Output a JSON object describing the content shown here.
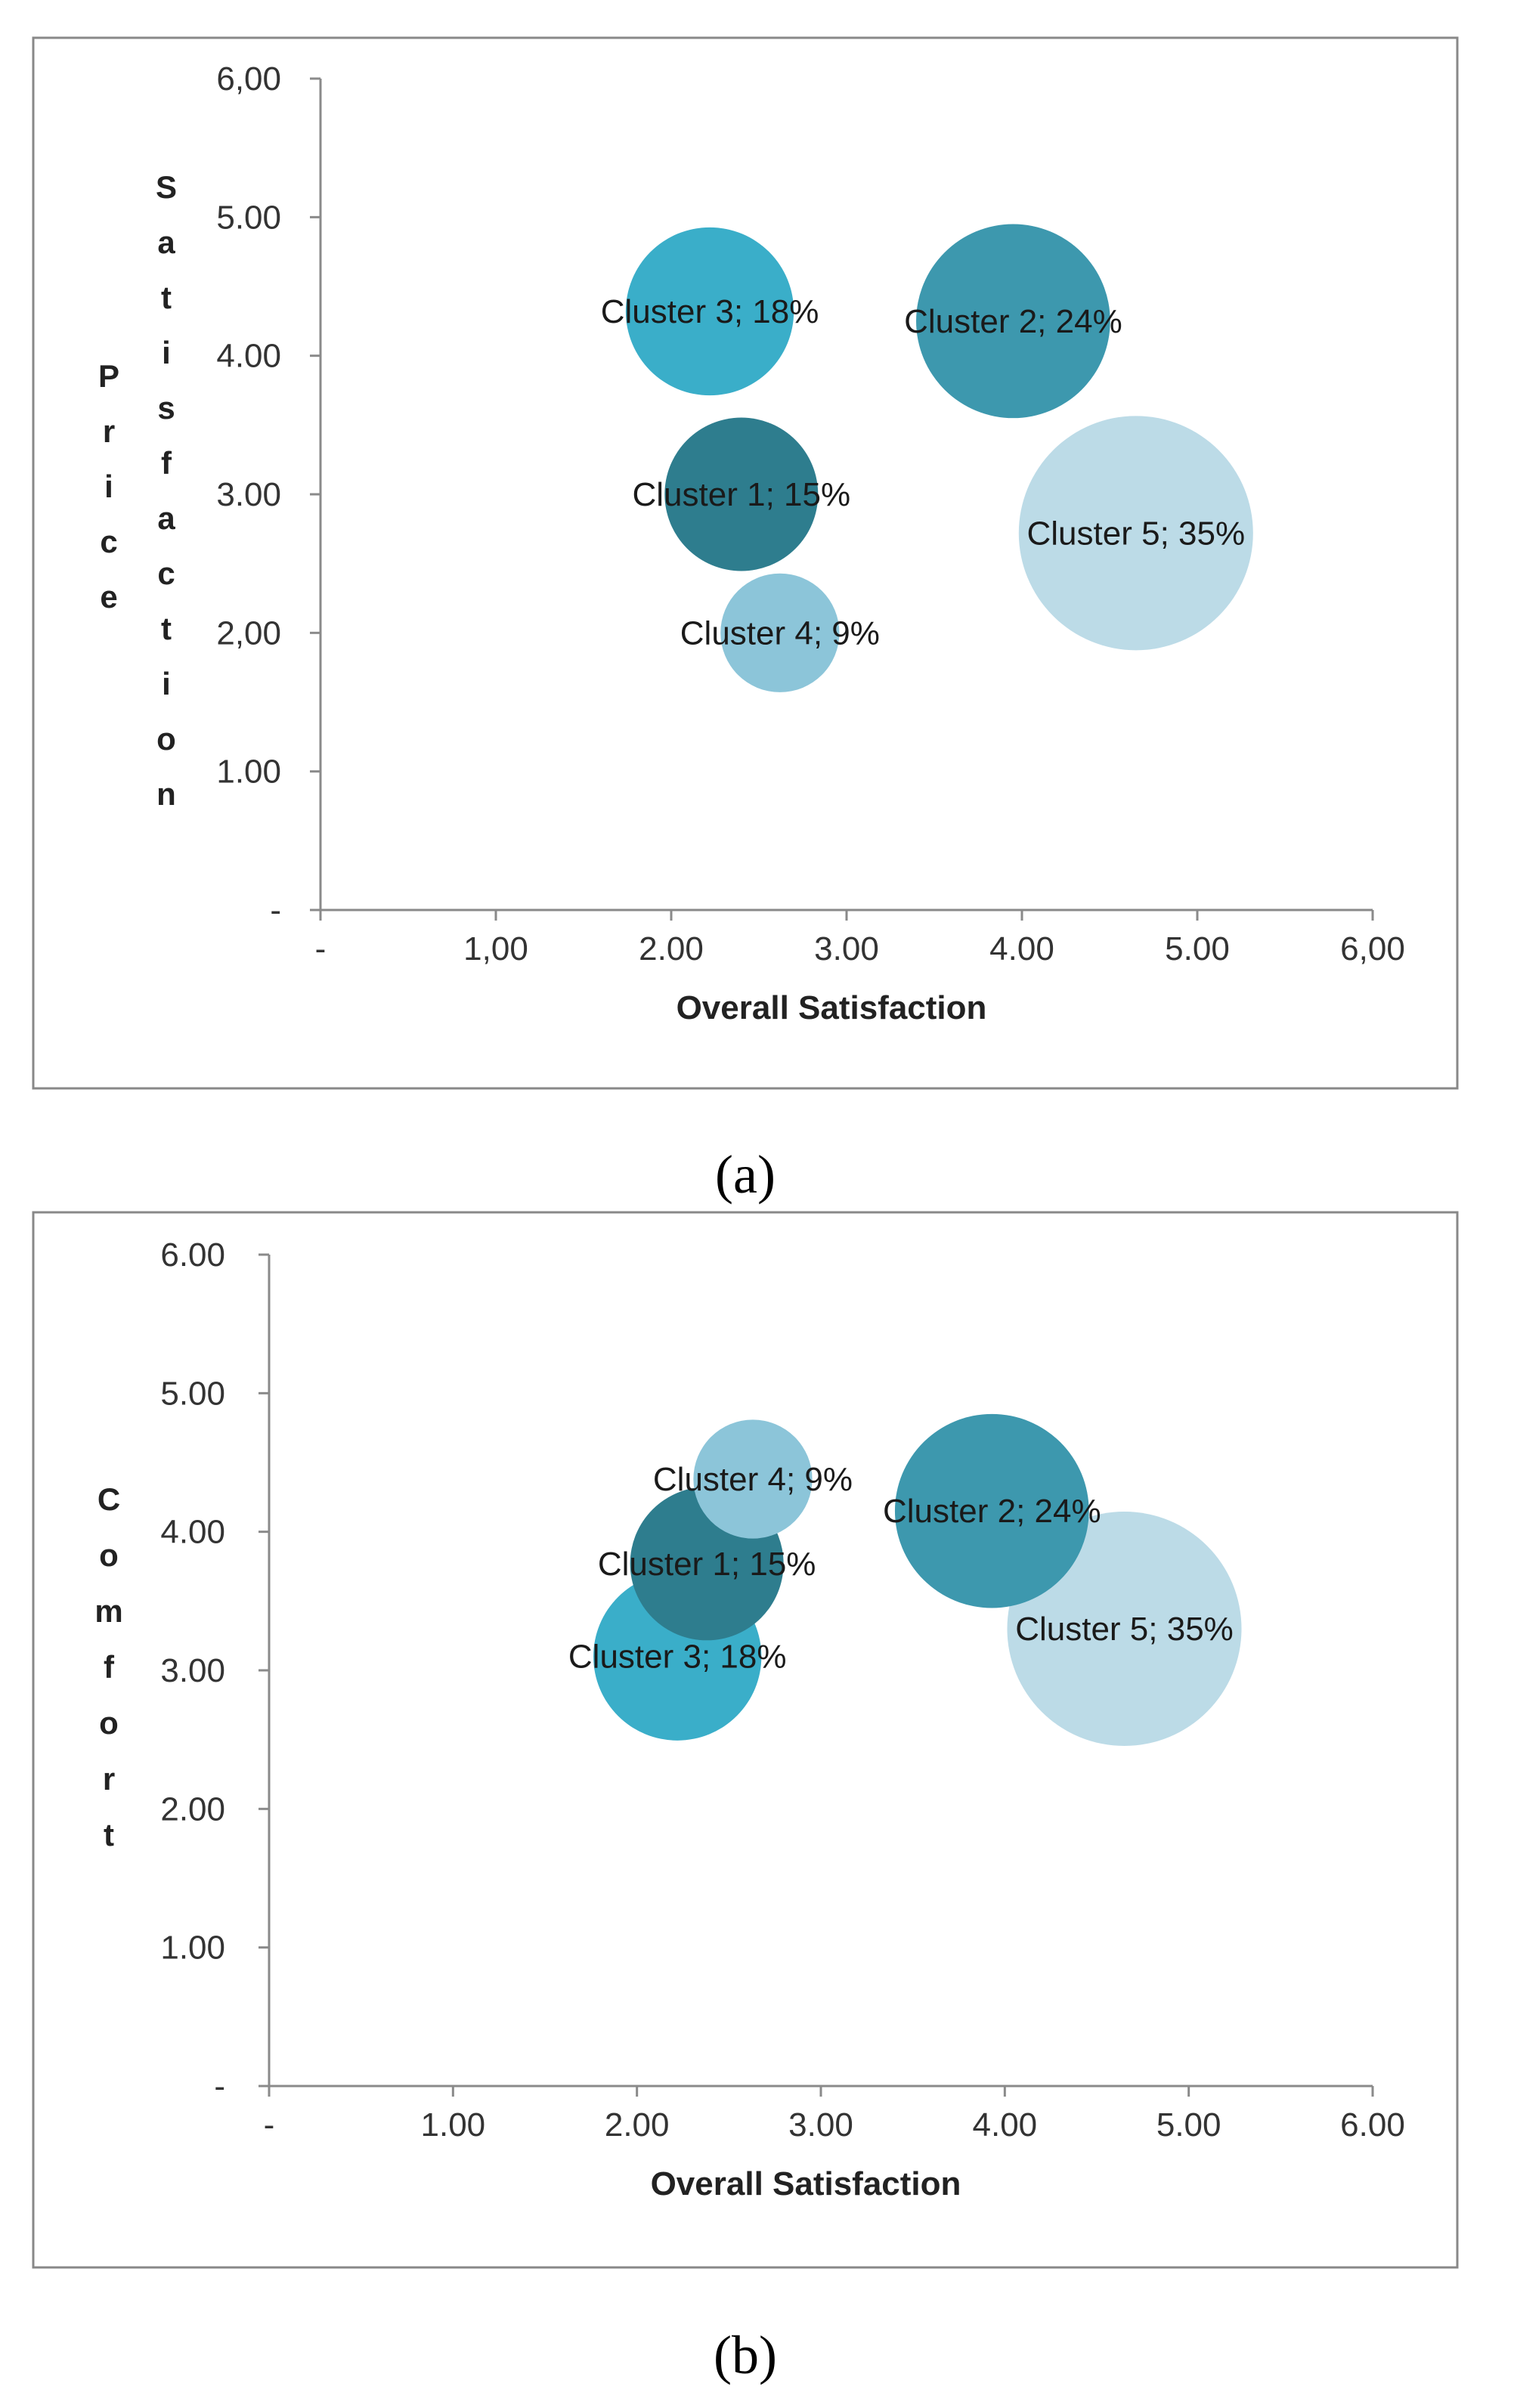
{
  "chart_data": [
    {
      "type": "bubble",
      "panel_caption": "(a)",
      "xlabel": "Overall Satisfaction",
      "ylabel_lines": [
        "Price",
        "Satisfaction"
      ],
      "xlim": [
        0,
        6
      ],
      "ylim": [
        0,
        6
      ],
      "x_ticks": [
        "-",
        "1,00",
        "2.00",
        "3.00",
        "4.00",
        "5.00",
        "6,00"
      ],
      "y_ticks": [
        "-",
        "1.00",
        "2,00",
        "3.00",
        "4.00",
        "5.00",
        "6,00"
      ],
      "grid": false,
      "series": [
        {
          "name": "Cluster 1",
          "label": "Cluster 1; 15%",
          "x": 2.4,
          "y": 3.0,
          "share": 15,
          "color": "#2e7d8e"
        },
        {
          "name": "Cluster 2",
          "label": "Cluster 2; 24%",
          "x": 3.95,
          "y": 4.25,
          "share": 24,
          "color": "#3d98ae"
        },
        {
          "name": "Cluster 3",
          "label": "Cluster 3; 18%",
          "x": 2.22,
          "y": 4.32,
          "share": 18,
          "color": "#3aaec9"
        },
        {
          "name": "Cluster 4",
          "label": "Cluster 4; 9%",
          "x": 2.62,
          "y": 2.0,
          "share": 9,
          "color": "#8cc5d9"
        },
        {
          "name": "Cluster 5",
          "label": "Cluster 5; 35%",
          "x": 4.65,
          "y": 2.72,
          "share": 35,
          "color": "#bcdbe7"
        }
      ]
    },
    {
      "type": "bubble",
      "panel_caption": "(b)",
      "xlabel": "Overall Satisfaction",
      "ylabel_lines": [
        "Comfort"
      ],
      "xlim": [
        0,
        6
      ],
      "ylim": [
        0,
        6
      ],
      "x_ticks": [
        "-",
        "1.00",
        "2.00",
        "3.00",
        "4.00",
        "5.00",
        "6.00"
      ],
      "y_ticks": [
        "-",
        "1.00",
        "2.00",
        "3.00",
        "4.00",
        "5.00",
        "6.00"
      ],
      "grid": false,
      "series": [
        {
          "name": "Cluster 1",
          "label": "Cluster 1; 15%",
          "x": 2.38,
          "y": 3.77,
          "share": 15,
          "color": "#2e7d8e"
        },
        {
          "name": "Cluster 2",
          "label": "Cluster 2; 24%",
          "x": 3.93,
          "y": 4.15,
          "share": 24,
          "color": "#3d98ae"
        },
        {
          "name": "Cluster 3",
          "label": "Cluster 3; 18%",
          "x": 2.22,
          "y": 3.1,
          "share": 18,
          "color": "#3aaec9"
        },
        {
          "name": "Cluster 4",
          "label": "Cluster 4; 9%",
          "x": 2.63,
          "y": 4.38,
          "share": 9,
          "color": "#8cc5d9"
        },
        {
          "name": "Cluster 5",
          "label": "Cluster 5; 35%",
          "x": 4.65,
          "y": 3.3,
          "share": 35,
          "color": "#bcdbe7"
        }
      ]
    }
  ]
}
